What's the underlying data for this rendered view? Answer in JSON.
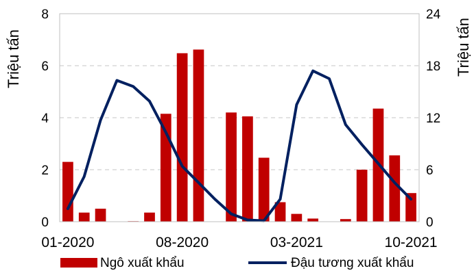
{
  "chart_data": {
    "type": "bar",
    "x_labels": [
      "01-2020",
      "08-2020",
      "03-2021",
      "10-2021"
    ],
    "x_label_positions": [
      0,
      7,
      14,
      21
    ],
    "months": 22,
    "y_left": {
      "label": "Triệu tấn",
      "min": 0,
      "max": 8,
      "ticks": [
        0,
        2,
        4,
        6,
        8
      ]
    },
    "y_right": {
      "label": "Triệu tấn",
      "min": 0,
      "max": 24,
      "ticks": [
        0,
        6,
        12,
        18,
        24
      ]
    },
    "grid": "horizontal-dashed",
    "legend_position": "bottom",
    "series": [
      {
        "name": "Ngô xuất khẩu",
        "type": "bar",
        "axis": "left",
        "color": "#c00000",
        "values": [
          2.3,
          0.35,
          0.5,
          0,
          0.02,
          0.35,
          4.15,
          6.48,
          6.62,
          0,
          4.2,
          4.05,
          2.46,
          0.75,
          0.3,
          0.12,
          0,
          0.1,
          2.0,
          4.35,
          2.55,
          1.1
        ]
      },
      {
        "name": "Đậu tương xuất khẩu",
        "type": "line",
        "axis": "right",
        "color": "#002060",
        "values": [
          1.5,
          5.2,
          11.7,
          16.3,
          15.6,
          13.9,
          10.3,
          6.4,
          4.5,
          2.6,
          0.9,
          0.2,
          0.1,
          2.6,
          13.5,
          17.4,
          16.5,
          11.2,
          8.9,
          6.7,
          4.5,
          2.6
        ]
      }
    ]
  }
}
